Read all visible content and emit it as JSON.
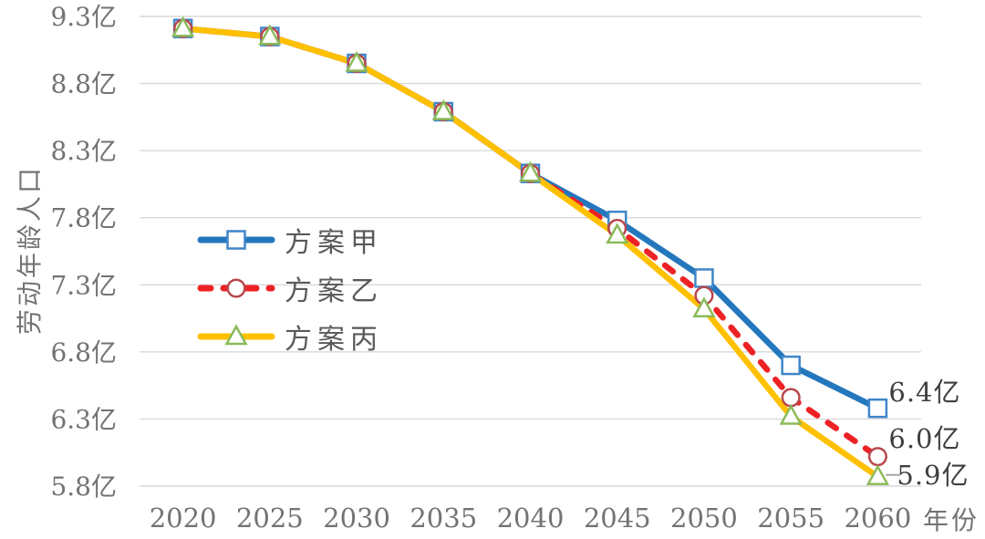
{
  "chart_data": {
    "type": "line",
    "title": "",
    "x_label": "年份",
    "y_label": "劳动年龄人口",
    "x_categories": [
      "2020",
      "2025",
      "2030",
      "2035",
      "2040",
      "2045",
      "2050",
      "2055",
      "2060"
    ],
    "y_ticks": [
      {
        "value": 9.3,
        "label": "9.3亿"
      },
      {
        "value": 8.8,
        "label": "8.8亿"
      },
      {
        "value": 8.3,
        "label": "8.3亿"
      },
      {
        "value": 7.8,
        "label": "7.8亿"
      },
      {
        "value": 7.3,
        "label": "7.3亿"
      },
      {
        "value": 6.8,
        "label": "6.8亿"
      },
      {
        "value": 6.3,
        "label": "6.3亿"
      },
      {
        "value": 5.8,
        "label": "5.8亿"
      }
    ],
    "ylim": [
      5.8,
      9.3
    ],
    "grid": true,
    "legend_position": "middle-left",
    "series": [
      {
        "name": "方案甲",
        "line_color": "#2377BD",
        "line_style": "solid",
        "marker": "square",
        "marker_color": "#3F86C9",
        "values": [
          9.21,
          9.15,
          8.95,
          8.59,
          8.13,
          7.78,
          7.35,
          6.7,
          6.38
        ],
        "end_label": "6.4亿"
      },
      {
        "name": "方案乙",
        "line_color": "#ED2225",
        "line_style": "dashed",
        "marker": "circle",
        "marker_color": "#B8474B",
        "values": [
          9.21,
          9.15,
          8.95,
          8.59,
          8.13,
          7.72,
          7.22,
          6.46,
          6.02
        ],
        "end_label": "6.0亿"
      },
      {
        "name": "方案丙",
        "line_color": "#FFC000",
        "line_style": "solid",
        "marker": "triangle",
        "marker_color": "#8CBA59",
        "values": [
          9.21,
          9.15,
          8.95,
          8.59,
          8.13,
          7.67,
          7.12,
          6.32,
          5.87
        ],
        "end_label": "5.9亿"
      }
    ],
    "colors": {
      "grid": "#D9D9D9",
      "tick_text": "#737373",
      "legend_text": "#595959",
      "end_label_text": "#3F3F3F",
      "leader_line": "#A6A6A6",
      "background": "#FFFFFF"
    }
  }
}
